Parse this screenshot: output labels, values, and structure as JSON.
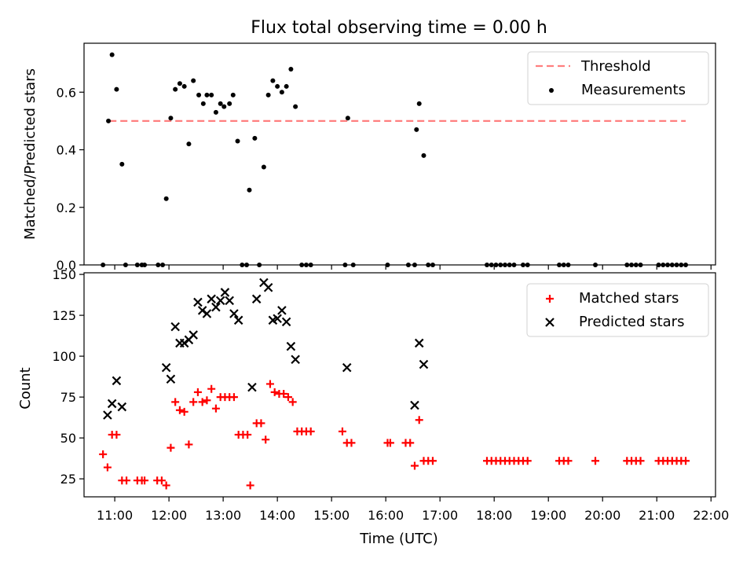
{
  "figure": {
    "title": "Flux total observing time = 0.00 h"
  },
  "chart_data": [
    {
      "type": "scatter",
      "panel": "top",
      "title": "Flux total observing time = 0.00 h",
      "xlabel": "",
      "ylabel": "Matched/Predicted stars",
      "xlim": [
        "10:26",
        "22:05"
      ],
      "ylim": [
        0,
        0.77
      ],
      "yticks": [
        0.0,
        0.2,
        0.4,
        0.6
      ],
      "ytick_labels": [
        "0.0",
        "0.2",
        "0.4",
        "0.6"
      ],
      "grid": false,
      "legend_position": "top-right",
      "threshold": {
        "name": "Threshold",
        "value": 0.5,
        "x_start": "10:54",
        "x_end": "21:32",
        "color": "#ff7f7f",
        "style": "dashed"
      },
      "series": [
        {
          "name": "Measurements",
          "color": "#000000",
          "marker": "dot",
          "points": [
            [
              "10:47",
              0.0
            ],
            [
              "10:53",
              0.5
            ],
            [
              "10:57",
              0.73
            ],
            [
              "11:02",
              0.61
            ],
            [
              "11:08",
              0.35
            ],
            [
              "11:12",
              0.0
            ],
            [
              "11:25",
              0.0
            ],
            [
              "11:30",
              0.0
            ],
            [
              "11:33",
              0.0
            ],
            [
              "11:48",
              0.0
            ],
            [
              "11:53",
              0.0
            ],
            [
              "11:57",
              0.23
            ],
            [
              "12:02",
              0.51
            ],
            [
              "12:07",
              0.61
            ],
            [
              "12:12",
              0.63
            ],
            [
              "12:17",
              0.62
            ],
            [
              "12:22",
              0.42
            ],
            [
              "12:27",
              0.64
            ],
            [
              "12:33",
              0.59
            ],
            [
              "12:38",
              0.56
            ],
            [
              "12:42",
              0.59
            ],
            [
              "12:47",
              0.59
            ],
            [
              "12:52",
              0.53
            ],
            [
              "12:57",
              0.56
            ],
            [
              "13:01",
              0.55
            ],
            [
              "13:07",
              0.56
            ],
            [
              "13:11",
              0.59
            ],
            [
              "13:16",
              0.43
            ],
            [
              "13:21",
              0.0
            ],
            [
              "13:26",
              0.0
            ],
            [
              "13:29",
              0.26
            ],
            [
              "13:35",
              0.44
            ],
            [
              "13:40",
              0.0
            ],
            [
              "13:45",
              0.34
            ],
            [
              "13:50",
              0.59
            ],
            [
              "13:55",
              0.64
            ],
            [
              "14:00",
              0.62
            ],
            [
              "14:05",
              0.6
            ],
            [
              "14:10",
              0.62
            ],
            [
              "14:15",
              0.68
            ],
            [
              "14:20",
              0.55
            ],
            [
              "14:27",
              0.0
            ],
            [
              "14:32",
              0.0
            ],
            [
              "14:37",
              0.0
            ],
            [
              "15:15",
              0.0
            ],
            [
              "15:18",
              0.51
            ],
            [
              "15:24",
              0.0
            ],
            [
              "16:02",
              0.0
            ],
            [
              "16:25",
              0.0
            ],
            [
              "16:32",
              0.0
            ],
            [
              "16:34",
              0.47
            ],
            [
              "16:37",
              0.56
            ],
            [
              "16:42",
              0.38
            ],
            [
              "16:47",
              0.0
            ],
            [
              "16:52",
              0.0
            ],
            [
              "17:52",
              0.0
            ],
            [
              "17:57",
              0.0
            ],
            [
              "18:02",
              0.0
            ],
            [
              "18:07",
              0.0
            ],
            [
              "18:12",
              0.0
            ],
            [
              "18:17",
              0.0
            ],
            [
              "18:22",
              0.0
            ],
            [
              "18:32",
              0.0
            ],
            [
              "18:37",
              0.0
            ],
            [
              "19:12",
              0.0
            ],
            [
              "19:17",
              0.0
            ],
            [
              "19:22",
              0.0
            ],
            [
              "19:52",
              0.0
            ],
            [
              "20:27",
              0.0
            ],
            [
              "20:32",
              0.0
            ],
            [
              "20:37",
              0.0
            ],
            [
              "20:42",
              0.0
            ],
            [
              "21:02",
              0.0
            ],
            [
              "21:07",
              0.0
            ],
            [
              "21:12",
              0.0
            ],
            [
              "21:17",
              0.0
            ],
            [
              "21:22",
              0.0
            ],
            [
              "21:27",
              0.0
            ],
            [
              "21:32",
              0.0
            ]
          ]
        }
      ]
    },
    {
      "type": "scatter",
      "panel": "bottom",
      "xlabel": "Time (UTC)",
      "ylabel": "Count",
      "xlim": [
        "10:26",
        "22:05"
      ],
      "ylim": [
        14,
        151
      ],
      "xticks": [
        "11:00",
        "12:00",
        "13:00",
        "14:00",
        "15:00",
        "16:00",
        "17:00",
        "18:00",
        "19:00",
        "20:00",
        "21:00",
        "22:00"
      ],
      "yticks": [
        25,
        50,
        75,
        100,
        125,
        150
      ],
      "ytick_labels": [
        "25",
        "50",
        "75",
        "100",
        "125",
        "150"
      ],
      "grid": false,
      "legend_position": "top-right",
      "series": [
        {
          "name": "Matched stars",
          "color": "#ff0000",
          "marker": "plus",
          "points": [
            [
              "10:47",
              40
            ],
            [
              "10:52",
              32
            ],
            [
              "10:57",
              52
            ],
            [
              "11:02",
              52
            ],
            [
              "11:08",
              24
            ],
            [
              "11:13",
              24
            ],
            [
              "11:25",
              24
            ],
            [
              "11:30",
              24
            ],
            [
              "11:33",
              24
            ],
            [
              "11:47",
              24
            ],
            [
              "11:52",
              24
            ],
            [
              "11:57",
              21
            ],
            [
              "12:02",
              44
            ],
            [
              "12:07",
              72
            ],
            [
              "12:12",
              67
            ],
            [
              "12:17",
              66
            ],
            [
              "12:22",
              46
            ],
            [
              "12:27",
              72
            ],
            [
              "12:32",
              78
            ],
            [
              "12:37",
              72
            ],
            [
              "12:42",
              73
            ],
            [
              "12:47",
              80
            ],
            [
              "12:52",
              68
            ],
            [
              "12:57",
              75
            ],
            [
              "13:02",
              75
            ],
            [
              "13:07",
              75
            ],
            [
              "13:12",
              75
            ],
            [
              "13:17",
              52
            ],
            [
              "13:22",
              52
            ],
            [
              "13:27",
              52
            ],
            [
              "13:30",
              21
            ],
            [
              "13:37",
              59
            ],
            [
              "13:42",
              59
            ],
            [
              "13:47",
              49
            ],
            [
              "13:52",
              83
            ],
            [
              "13:57",
              78
            ],
            [
              "14:02",
              77
            ],
            [
              "14:07",
              77
            ],
            [
              "14:12",
              75
            ],
            [
              "14:17",
              72
            ],
            [
              "14:22",
              54
            ],
            [
              "14:27",
              54
            ],
            [
              "14:32",
              54
            ],
            [
              "14:37",
              54
            ],
            [
              "15:12",
              54
            ],
            [
              "15:17",
              47
            ],
            [
              "15:22",
              47
            ],
            [
              "16:02",
              47
            ],
            [
              "16:05",
              47
            ],
            [
              "16:22",
              47
            ],
            [
              "16:27",
              47
            ],
            [
              "16:32",
              33
            ],
            [
              "16:37",
              61
            ],
            [
              "16:42",
              36
            ],
            [
              "16:47",
              36
            ],
            [
              "16:52",
              36
            ],
            [
              "17:52",
              36
            ],
            [
              "17:57",
              36
            ],
            [
              "18:02",
              36
            ],
            [
              "18:07",
              36
            ],
            [
              "18:12",
              36
            ],
            [
              "18:17",
              36
            ],
            [
              "18:22",
              36
            ],
            [
              "18:27",
              36
            ],
            [
              "18:32",
              36
            ],
            [
              "18:37",
              36
            ],
            [
              "19:12",
              36
            ],
            [
              "19:17",
              36
            ],
            [
              "19:22",
              36
            ],
            [
              "19:52",
              36
            ],
            [
              "20:27",
              36
            ],
            [
              "20:32",
              36
            ],
            [
              "20:37",
              36
            ],
            [
              "20:42",
              36
            ],
            [
              "21:02",
              36
            ],
            [
              "21:07",
              36
            ],
            [
              "21:12",
              36
            ],
            [
              "21:17",
              36
            ],
            [
              "21:22",
              36
            ],
            [
              "21:27",
              36
            ],
            [
              "21:32",
              36
            ]
          ]
        },
        {
          "name": "Predicted stars",
          "color": "#000000",
          "marker": "x",
          "points": [
            [
              "10:52",
              64
            ],
            [
              "10:57",
              71
            ],
            [
              "11:02",
              85
            ],
            [
              "11:08",
              69
            ],
            [
              "11:57",
              93
            ],
            [
              "12:02",
              86
            ],
            [
              "12:07",
              118
            ],
            [
              "12:12",
              108
            ],
            [
              "12:17",
              108
            ],
            [
              "12:22",
              110
            ],
            [
              "12:27",
              113
            ],
            [
              "12:32",
              133
            ],
            [
              "12:37",
              128
            ],
            [
              "12:42",
              126
            ],
            [
              "12:47",
              135
            ],
            [
              "12:52",
              130
            ],
            [
              "12:57",
              134
            ],
            [
              "13:02",
              139
            ],
            [
              "13:07",
              134
            ],
            [
              "13:12",
              126
            ],
            [
              "13:17",
              122
            ],
            [
              "13:32",
              81
            ],
            [
              "13:37",
              135
            ],
            [
              "13:45",
              145
            ],
            [
              "13:50",
              142
            ],
            [
              "13:55",
              122
            ],
            [
              "14:00",
              123
            ],
            [
              "14:05",
              128
            ],
            [
              "14:10",
              121
            ],
            [
              "14:15",
              106
            ],
            [
              "14:20",
              98
            ],
            [
              "15:17",
              93
            ],
            [
              "16:32",
              70
            ],
            [
              "16:37",
              108
            ],
            [
              "16:42",
              95
            ]
          ]
        }
      ]
    }
  ]
}
